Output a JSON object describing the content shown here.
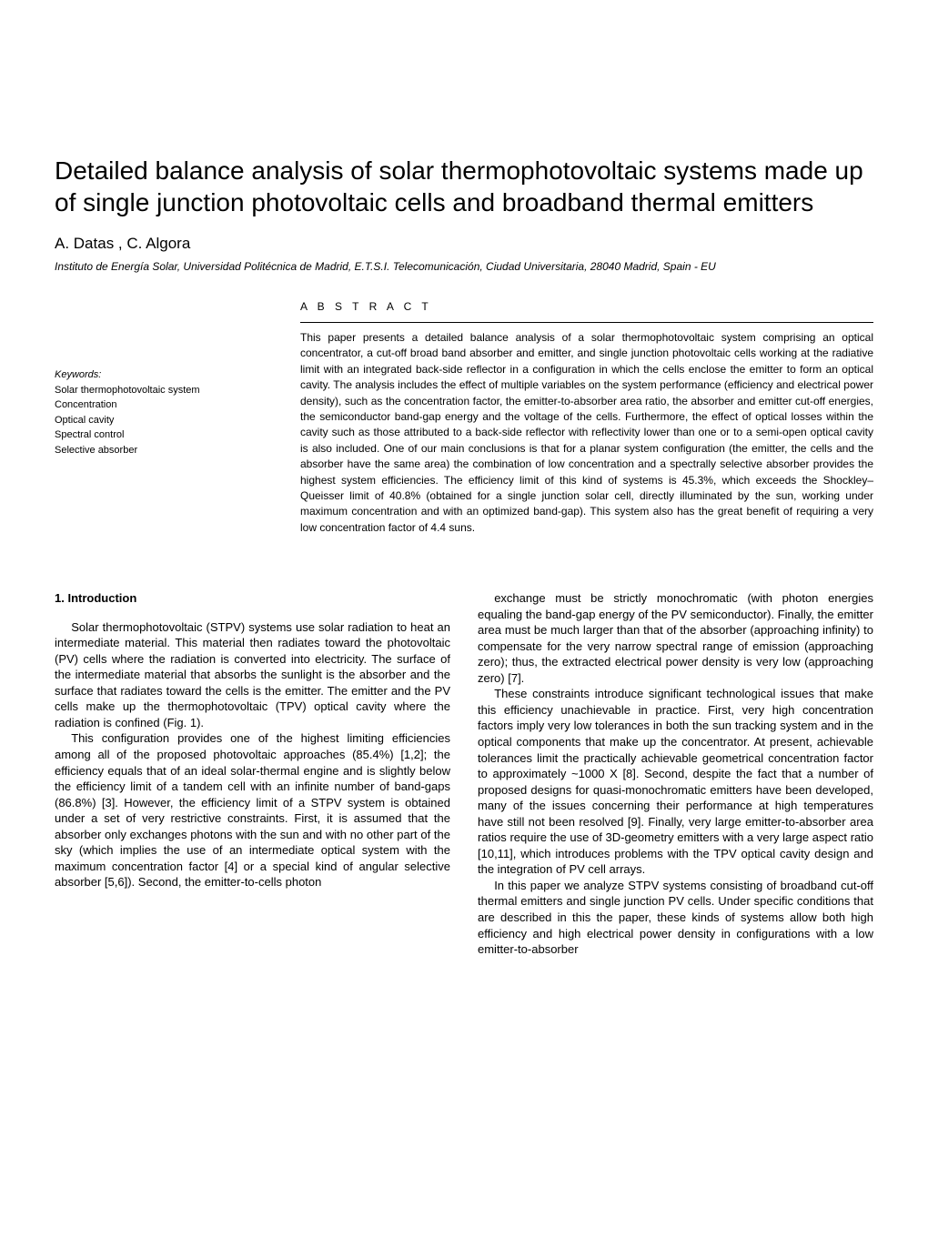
{
  "title": "Detailed balance analysis of solar thermophotovoltaic systems made up of single junction photovoltaic cells and broadband thermal emitters",
  "authors": "A. Datas , C. Algora",
  "affiliation": "Instituto de Energía Solar, Universidad Politécnica de Madrid, E.T.S.I. Telecomunicación, Ciudad Universitaria, 28040 Madrid, Spain - EU",
  "abstract_heading": "A B S T R A C T",
  "abstract_text": "This paper presents a detailed balance analysis of a solar thermophotovoltaic system comprising an optical concentrator, a cut-off broad band absorber and emitter, and single junction photovoltaic cells working at the radiative limit with an integrated back-side reflector in a configuration in which the cells enclose the emitter to form an optical cavity. The analysis includes the effect of multiple variables on the system performance (efficiency and electrical power density), such as the concentration factor, the emitter-to-absorber area ratio, the absorber and emitter cut-off energies, the semiconductor band-gap energy and the voltage of the cells. Furthermore, the effect of optical losses within the cavity such as those attributed to a back-side reflector with reflectivity lower than one or to a semi-open optical cavity is also included. One of our main conclusions is that for a planar system configuration (the emitter, the cells and the absorber have the same area) the combination of low concentration and a spectrally selective absorber provides the highest system efficiencies. The efficiency limit of this kind of systems is 45.3%, which exceeds the Shockley–Queisser limit of 40.8% (obtained for a single junction solar cell, directly illuminated by the sun, working under maximum concentration and with an optimized band-gap). This system also has the great benefit of requiring a very low concentration factor of 4.4 suns.",
  "keywords_label": "Keywords:",
  "keywords": {
    "k1": "Solar thermophotovoltaic system",
    "k2": "Concentration",
    "k3": "Optical cavity",
    "k4": "Spectral control",
    "k5": "Selective absorber"
  },
  "section_heading": "1.  Introduction",
  "col1": {
    "p1": "Solar thermophotovoltaic (STPV) systems use solar radiation to heat an intermediate material. This material then radiates toward the photovoltaic (PV) cells where the radiation is converted into electricity. The surface of the intermediate material that absorbs the sunlight is the absorber and the surface that radiates toward the cells is the emitter. The emitter and the PV cells make up the thermophotovoltaic (TPV) optical cavity where the radiation is confined (Fig. 1).",
    "p2": "This configuration provides one of the highest limiting efficiencies among all of the proposed photovoltaic approaches (85.4%) [1,2]; the efficiency equals that of an ideal solar-thermal engine and is slightly below the efficiency limit of a tandem cell with an infinite number of band-gaps (86.8%) [3]. However, the efficiency limit of a STPV system is obtained under a set of very restrictive constraints. First, it is assumed that the absorber only exchanges photons with the sun and with no other part of the sky (which implies the use of an intermediate optical system with the maximum concentration factor [4] or a special kind of angular selective absorber [5,6]). Second, the emitter-to-cells photon"
  },
  "col2": {
    "p1": "exchange must be strictly monochromatic (with photon energies equaling the band-gap energy of the PV semiconductor). Finally, the emitter area must be much larger than that of the absorber (approaching infinity) to compensate for the very narrow spectral range of emission (approaching zero); thus, the extracted electrical power density is very low (approaching zero) [7].",
    "p2": "These constraints introduce significant technological issues that make this efficiency unachievable in practice. First, very high concentration factors imply very low tolerances in both the sun tracking system and in the optical components that make up the concentrator. At present, achievable tolerances limit the practically achievable geometrical concentration factor to approximately ~1000 X [8]. Second, despite the fact that a number of proposed designs for quasi-monochromatic emitters have been developed, many of the issues concerning their performance at high temperatures have still not been resolved [9]. Finally, very large emitter-to-absorber area ratios require the use of 3D-geometry emitters with a very large aspect ratio [10,11], which introduces problems with the TPV optical cavity design and the integration of PV cell arrays.",
    "p3": "In this paper we analyze STPV systems consisting of broadband cut-off thermal emitters and single junction PV cells. Under specific conditions that are described in this the paper, these kinds of systems allow both high efficiency and high electrical power density in configurations with a low emitter-to-absorber"
  }
}
